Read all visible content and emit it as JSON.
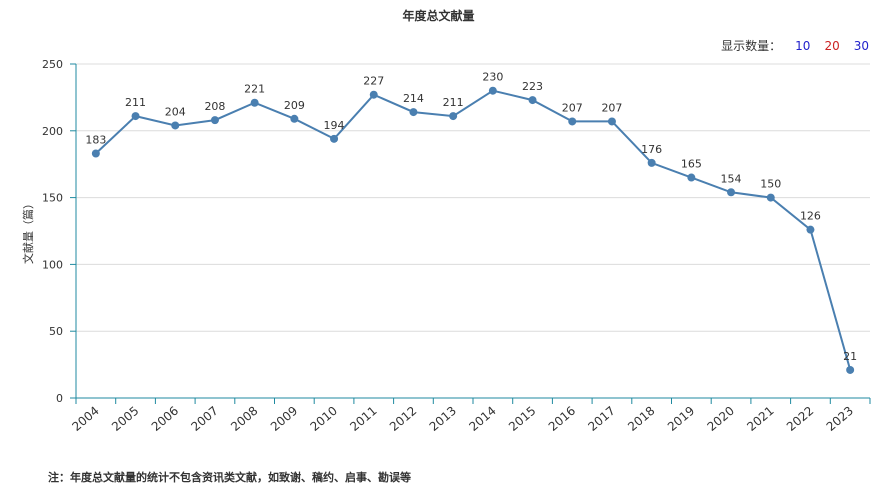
{
  "title": "年度总文献量",
  "count_selector": {
    "label": "显示数量：",
    "options": [
      {
        "label": "10",
        "color": "#2222cc"
      },
      {
        "label": "20",
        "color": "#cc2222"
      },
      {
        "label": "30",
        "color": "#2222cc"
      }
    ]
  },
  "footnote": "注：年度总文献量的统计不包含资讯类文献，如致谢、稿约、启事、勘误等",
  "chart_data": {
    "type": "line",
    "title": "年度总文献量",
    "xlabel": "",
    "ylabel": "文献量（篇）",
    "ylim": [
      0,
      250
    ],
    "yticks": [
      0,
      50,
      100,
      150,
      200,
      250
    ],
    "grid": true,
    "line_color": "#4a7fb0",
    "x": [
      "2004",
      "2005",
      "2006",
      "2007",
      "2008",
      "2009",
      "2010",
      "2011",
      "2012",
      "2013",
      "2014",
      "2015",
      "2016",
      "2017",
      "2018",
      "2019",
      "2020",
      "2021",
      "2022",
      "2023"
    ],
    "values": [
      183,
      211,
      204,
      208,
      221,
      209,
      194,
      227,
      214,
      211,
      230,
      223,
      207,
      207,
      176,
      165,
      154,
      150,
      126,
      21
    ]
  }
}
